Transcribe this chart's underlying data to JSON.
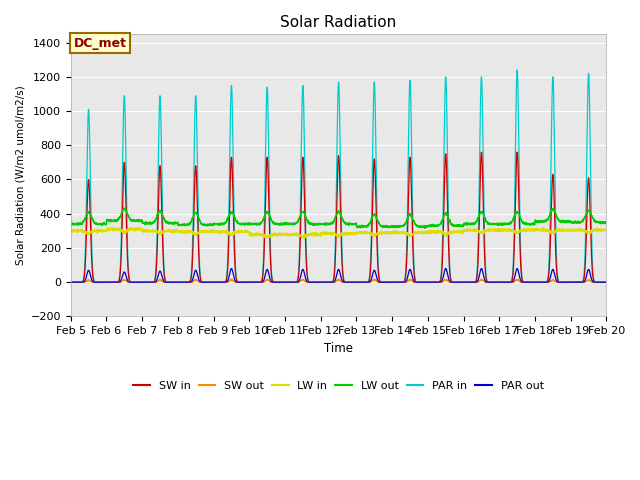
{
  "title": "Solar Radiation",
  "ylabel": "Solar Radiation (W/m2 umol/m2/s)",
  "xlabel": "Time",
  "annotation": "DC_met",
  "ylim": [
    -200,
    1450
  ],
  "yticks": [
    -200,
    0,
    200,
    400,
    600,
    800,
    1000,
    1200,
    1400
  ],
  "background_color": "#e8e8e8",
  "series": {
    "SW_in": {
      "color": "#cc0000",
      "label": "SW in"
    },
    "SW_out": {
      "color": "#ff8800",
      "label": "SW out"
    },
    "LW_in": {
      "color": "#dddd00",
      "label": "LW in"
    },
    "LW_out": {
      "color": "#00cc00",
      "label": "LW out"
    },
    "PAR_in": {
      "color": "#00cccc",
      "label": "PAR in"
    },
    "PAR_out": {
      "color": "#0000cc",
      "label": "PAR out"
    }
  },
  "n_days": 15,
  "start_day": 5,
  "points_per_day": 288,
  "sw_peaks": [
    600,
    700,
    680,
    680,
    730,
    730,
    730,
    740,
    720,
    730,
    750,
    760,
    760,
    630,
    610
  ],
  "par_peaks": [
    1010,
    1090,
    1090,
    1090,
    1150,
    1140,
    1150,
    1170,
    1170,
    1180,
    1200,
    1200,
    1240,
    1200,
    1220
  ],
  "lw_out_base": [
    340,
    360,
    345,
    335,
    340,
    340,
    340,
    340,
    325,
    325,
    330,
    340,
    340,
    355,
    350
  ],
  "lw_in_base": [
    300,
    310,
    300,
    295,
    295,
    280,
    280,
    285,
    290,
    290,
    295,
    305,
    305,
    305,
    305
  ],
  "par_out_peaks": [
    70,
    60,
    65,
    70,
    80,
    75,
    75,
    75,
    70,
    75,
    80,
    80,
    80,
    75,
    75
  ]
}
